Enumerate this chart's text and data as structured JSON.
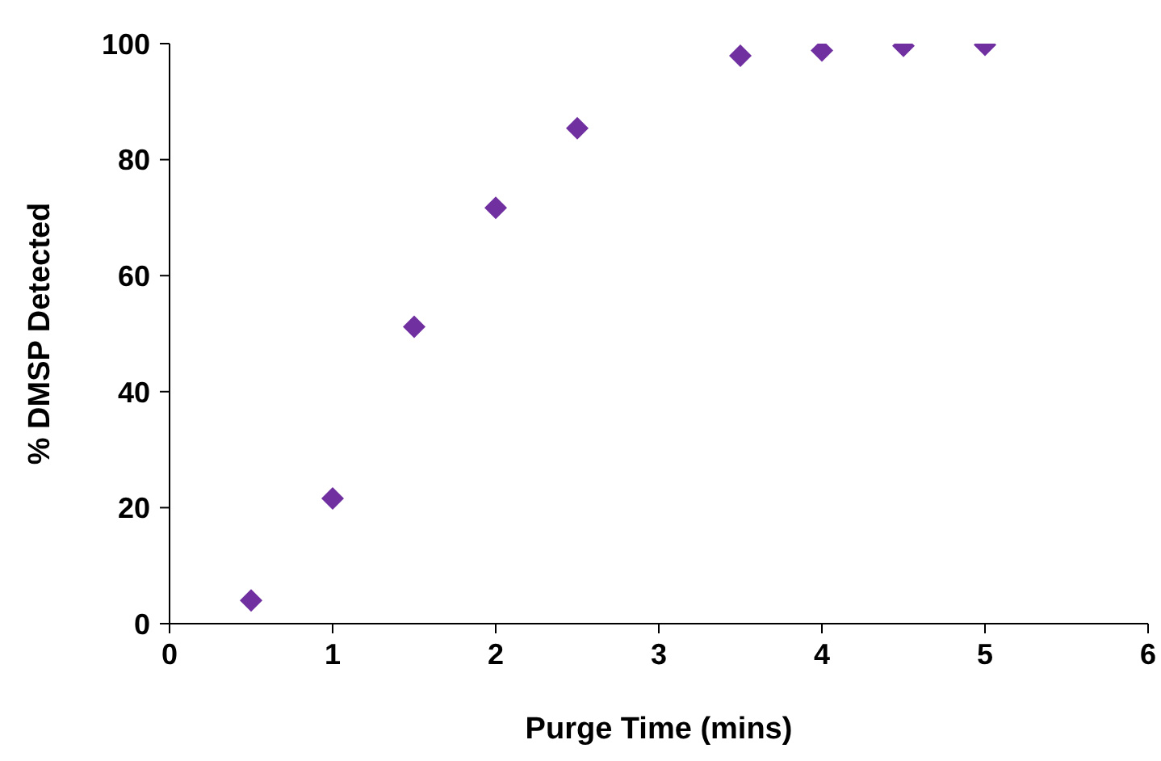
{
  "chart_data": {
    "type": "scatter",
    "xlabel": "Purge Time (mins)",
    "ylabel": "% DMSP Detected",
    "x": [
      0.5,
      1,
      1.5,
      2,
      2.5,
      3.5,
      4,
      4.5,
      5
    ],
    "series": [
      {
        "color": "#7030a0",
        "values": [
          4.0,
          21.6,
          51.2,
          71.7,
          85.4,
          97.9,
          98.8,
          99.6,
          99.8
        ]
      }
    ],
    "xlim": [
      0,
      6
    ],
    "xticks": [
      0,
      1,
      2,
      3,
      4,
      5,
      6
    ],
    "ylim": [
      0,
      100
    ],
    "yticks": [
      0,
      20,
      40,
      60,
      80,
      100
    ],
    "grid": false,
    "legend": false,
    "marker": "diamond"
  }
}
